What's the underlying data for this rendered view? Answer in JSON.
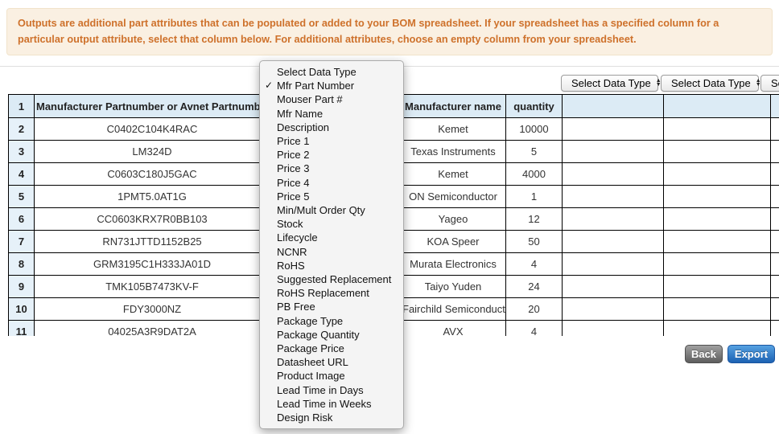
{
  "banner": {
    "text": "Outputs are additional part attributes that can be populated or added to your BOM spreadsheet. If your spreadsheet has a specified column for a particular output attribute, select that column below. For additional attributes, choose an empty column from your spreadsheet."
  },
  "icons": {
    "check": "✓",
    "spinner_up": "▲",
    "spinner_down": "▼"
  },
  "column_selectors": {
    "placeholder": "Select Data Type"
  },
  "dropdown_menu": {
    "selected": "Mfr Part Number",
    "items": [
      "Select Data Type",
      "Mfr Part Number",
      "Mouser Part #",
      "Mfr Name",
      "Description",
      "Price 1",
      "Price 2",
      "Price 3",
      "Price 4",
      "Price 5",
      "Min/Mult Order Qty",
      "Stock",
      "Lifecycle",
      "NCNR",
      "RoHS",
      "Suggested Replacement",
      "RoHS Replacement",
      "PB Free",
      "Package Type",
      "Package Quantity",
      "Package Price",
      "Datasheet URL",
      "Product Image",
      "Lead Time in Days",
      "Lead Time in Weeks",
      "Design Risk"
    ]
  },
  "table": {
    "header": {
      "row_number": "1",
      "part_column": "Manufacturer Partnumber or Avnet Partnumber",
      "hidden_column": "",
      "mfr_column": "Manufacturer name",
      "qty_column": "quantity",
      "extra_columns": [
        "",
        "",
        ""
      ]
    },
    "rows": [
      {
        "n": "2",
        "part": "C0402C104K4RAC",
        "mfr": "Kemet",
        "qty": "10000"
      },
      {
        "n": "3",
        "part": "LM324D",
        "mfr": "Texas Instruments",
        "qty": "5"
      },
      {
        "n": "4",
        "part": "C0603C180J5GAC",
        "mfr": "Kemet",
        "qty": "4000"
      },
      {
        "n": "5",
        "part": "1PMT5.0AT1G",
        "mfr": "ON Semiconductor",
        "qty": "1"
      },
      {
        "n": "6",
        "part": "CC0603KRX7R0BB103",
        "mfr": "Yageo",
        "qty": "12"
      },
      {
        "n": "7",
        "part": "RN731JTTD1152B25",
        "mfr": "KOA Speer",
        "qty": "50"
      },
      {
        "n": "8",
        "part": "GRM3195C1H333JA01D",
        "mfr": "Murata Electronics",
        "qty": "4"
      },
      {
        "n": "9",
        "part": "TMK105B7473KV-F",
        "mfr": "Taiyo Yuden",
        "qty": "24"
      },
      {
        "n": "10",
        "part": "FDY3000NZ",
        "mfr": "Fairchild Semiconductor",
        "qty": "20"
      },
      {
        "n": "11",
        "part": "04025A3R9DAT2A",
        "mfr": "AVX",
        "qty": "4"
      }
    ]
  },
  "buttons": {
    "back": "Back",
    "export": "Export"
  },
  "colors": {
    "banner_bg": "#faf0e2",
    "banner_text": "#ce712b",
    "header_blue": "#dcebf5",
    "rownum_blue": "#e6f1f9",
    "export_blue": "#1c61b2",
    "back_gray": "#5d5d5d"
  }
}
